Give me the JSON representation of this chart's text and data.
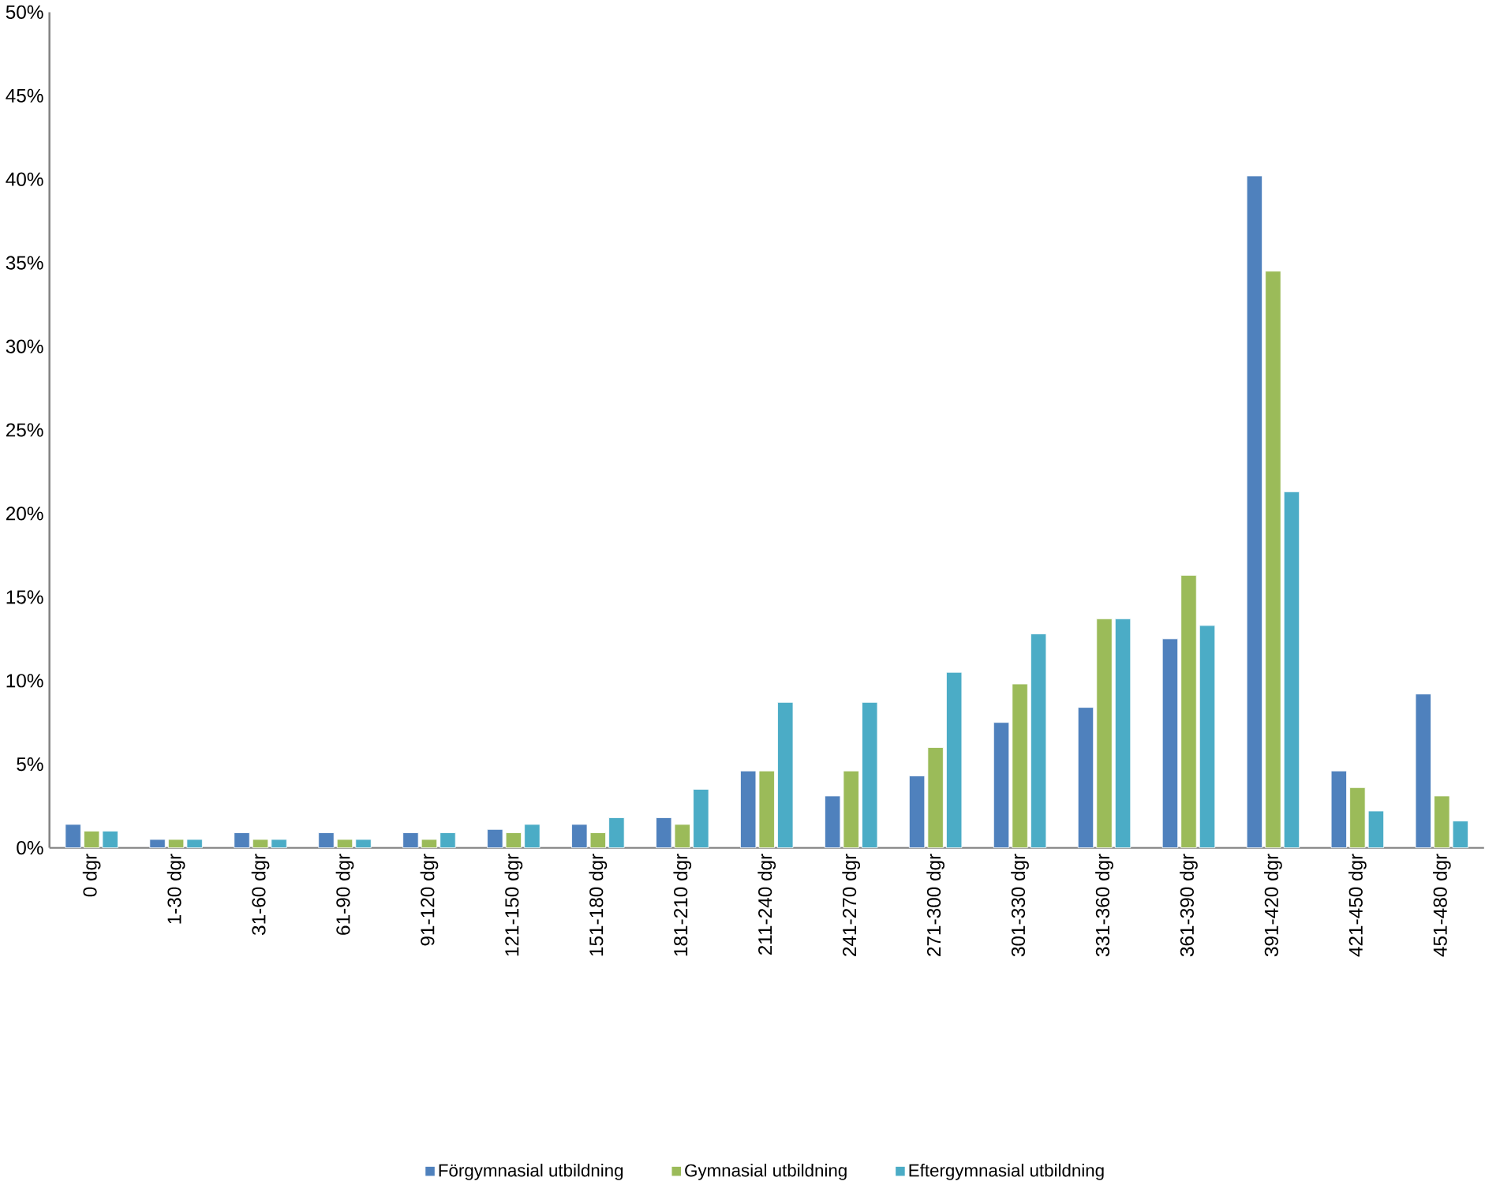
{
  "chart_data": {
    "type": "bar",
    "categories": [
      "0 dgr",
      "1-30 dgr",
      "31-60 dgr",
      "61-90 dgr",
      "91-120 dgr",
      "121-150 dgr",
      "151-180 dgr",
      "181-210 dgr",
      "211-240 dgr",
      "241-270 dgr",
      "271-300 dgr",
      "301-330 dgr",
      "331-360 dgr",
      "361-390 dgr",
      "391-420 dgr",
      "421-450 dgr",
      "451-480 dgr"
    ],
    "series": [
      {
        "name": "Förgymnasial utbildning",
        "color": "#4f81bd",
        "values": [
          1.4,
          0.5,
          0.9,
          0.9,
          0.9,
          1.1,
          1.4,
          1.8,
          4.6,
          3.1,
          4.3,
          7.5,
          8.4,
          12.5,
          40.2,
          4.6,
          9.2
        ]
      },
      {
        "name": "Gymnasial utbildning",
        "color": "#9bbb59",
        "values": [
          1.0,
          0.5,
          0.5,
          0.5,
          0.5,
          0.9,
          0.9,
          1.4,
          4.6,
          4.6,
          6.0,
          9.8,
          13.7,
          16.3,
          34.5,
          3.6,
          3.1
        ]
      },
      {
        "name": "Eftergymnasial utbildning",
        "color": "#4bacc6",
        "values": [
          1.0,
          0.5,
          0.5,
          0.5,
          0.9,
          1.4,
          1.8,
          3.5,
          8.7,
          8.7,
          10.5,
          12.8,
          13.7,
          13.3,
          21.3,
          2.2,
          1.6
        ]
      }
    ],
    "ylim": [
      0,
      50
    ],
    "yticks": [
      {
        "value": 0,
        "label": "0%"
      },
      {
        "value": 5,
        "label": "5%"
      },
      {
        "value": 10,
        "label": "10%"
      },
      {
        "value": 15,
        "label": "15%"
      },
      {
        "value": 20,
        "label": "20%"
      },
      {
        "value": 25,
        "label": "25%"
      },
      {
        "value": 30,
        "label": "30%"
      },
      {
        "value": 35,
        "label": "35%"
      },
      {
        "value": 40,
        "label": "40%"
      },
      {
        "value": 45,
        "label": "45%"
      },
      {
        "value": 50,
        "label": "50%"
      }
    ],
    "grid": false,
    "legend": "bottom"
  }
}
